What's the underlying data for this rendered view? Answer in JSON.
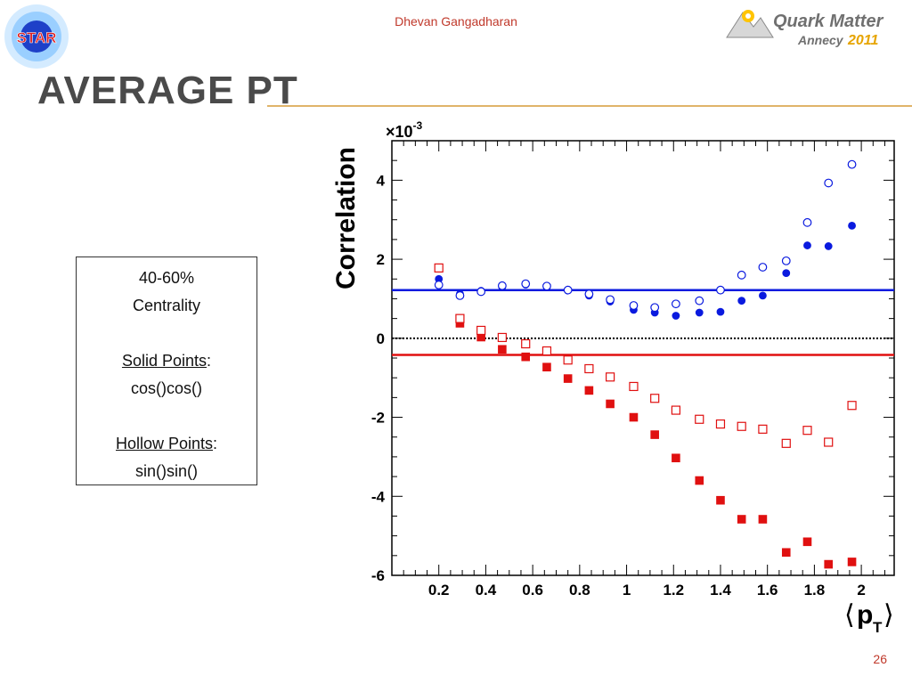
{
  "header": {
    "author": "Dhevan Gangadharan",
    "star_logo_text": "STAR",
    "conference_logo_line1": "Quark Matter",
    "conference_logo_line2": "Annecy",
    "conference_logo_year": "2011"
  },
  "slide": {
    "title": "Average pT",
    "page_number": "26"
  },
  "info_box": {
    "line1": "40-60%",
    "line2": "Centrality",
    "solid_label": "Solid Points",
    "solid_colon": ":",
    "solid_formula": "cos()cos()",
    "hollow_label": "Hollow Points",
    "hollow_colon": ":",
    "hollow_formula": "sin()sin()"
  },
  "colors": {
    "title": "#4a4a4a",
    "accent_rule": "#e0b46a",
    "header_text": "#c0392b",
    "blue_series": "#0a1adf",
    "red_series": "#e01010"
  },
  "chart_data": {
    "type": "scatter",
    "ylabel": "Correlation",
    "xlabel_main": "p",
    "xlabel_sub": "T",
    "exponent_label": "×10",
    "exponent_power": "-3",
    "xlim": [
      0.0,
      2.14
    ],
    "ylim": [
      -6.0,
      5.0
    ],
    "x_ticks": [
      0.2,
      0.4,
      0.6,
      0.8,
      1,
      1.2,
      1.4,
      1.6,
      1.8,
      2
    ],
    "x_tick_labels": [
      "0.2",
      "0.4",
      "0.6",
      "0.8",
      "1",
      "1.2",
      "1.4",
      "1.6",
      "1.8",
      "2"
    ],
    "y_ticks": [
      -6,
      -4,
      -2,
      0,
      2,
      4
    ],
    "y_tick_labels": [
      "-6",
      "-4",
      "-2",
      "0",
      "2",
      "4"
    ],
    "x": [
      0.2,
      0.29,
      0.38,
      0.47,
      0.57,
      0.66,
      0.75,
      0.84,
      0.93,
      1.03,
      1.12,
      1.21,
      1.31,
      1.4,
      1.49,
      1.58,
      1.68,
      1.77,
      1.86,
      1.96
    ],
    "series": [
      {
        "color": "blue",
        "marker": "circle",
        "filled": true,
        "values": [
          1.5,
          1.12,
          1.2,
          1.3,
          1.36,
          1.3,
          1.22,
          1.08,
          0.93,
          0.72,
          0.65,
          0.57,
          0.65,
          0.67,
          0.95,
          1.08,
          1.65,
          2.35,
          2.33,
          2.85
        ]
      },
      {
        "color": "blue",
        "marker": "circle",
        "filled": false,
        "values": [
          1.35,
          1.08,
          1.18,
          1.33,
          1.38,
          1.32,
          1.22,
          1.12,
          0.98,
          0.83,
          0.78,
          0.87,
          0.95,
          1.22,
          1.6,
          1.8,
          1.96,
          2.93,
          3.93,
          4.4
        ]
      },
      {
        "color": "red",
        "marker": "square",
        "filled": true,
        "values": [
          1.78,
          0.38,
          0.03,
          -0.28,
          -0.47,
          -0.73,
          -1.02,
          -1.32,
          -1.66,
          -2.0,
          -2.44,
          -3.03,
          -3.6,
          -4.1,
          -4.58,
          -4.58,
          -5.42,
          -5.15,
          -5.72,
          -5.66
        ]
      },
      {
        "color": "red",
        "marker": "square",
        "filled": false,
        "values": [
          1.78,
          0.5,
          0.2,
          0.02,
          -0.14,
          -0.32,
          -0.55,
          -0.77,
          -0.98,
          -1.22,
          -1.52,
          -1.82,
          -2.05,
          -2.17,
          -2.23,
          -2.3,
          -2.66,
          -2.33,
          -2.63,
          -1.7
        ]
      }
    ],
    "reference_lines": [
      {
        "y": 1.22,
        "color": "blue",
        "style": "solid"
      },
      {
        "y": -0.42,
        "color": "red",
        "style": "solid"
      },
      {
        "y": 0.0,
        "color": "black",
        "style": "dotted"
      }
    ],
    "grid": false
  }
}
